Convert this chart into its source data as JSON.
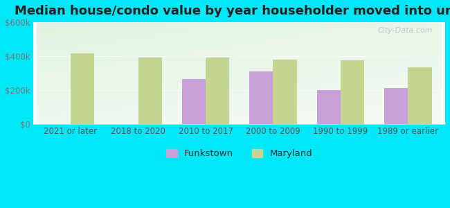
{
  "title": "Median house/condo value by year householder moved into unit",
  "categories": [
    "2021 or later",
    "2018 to 2020",
    "2010 to 2017",
    "2000 to 2009",
    "1990 to 1999",
    "1989 or earlier"
  ],
  "funkstown": [
    null,
    null,
    265000,
    310000,
    200000,
    210000
  ],
  "maryland": [
    415000,
    390000,
    393000,
    378000,
    375000,
    335000
  ],
  "funkstown_color": "#c8a0d8",
  "maryland_color": "#c5d490",
  "background_outer": "#00e8f8",
  "ylabel_color": "#777777",
  "xlabel_color": "#555555",
  "title_fontsize": 13,
  "tick_fontsize": 8.5,
  "legend_fontsize": 9.5,
  "ylim": [
    0,
    600000
  ],
  "yticks": [
    0,
    200000,
    400000,
    600000
  ],
  "ytick_labels": [
    "$0",
    "$200k",
    "$400k",
    "$600k"
  ],
  "bar_width": 0.35,
  "watermark": "City-Data.com"
}
